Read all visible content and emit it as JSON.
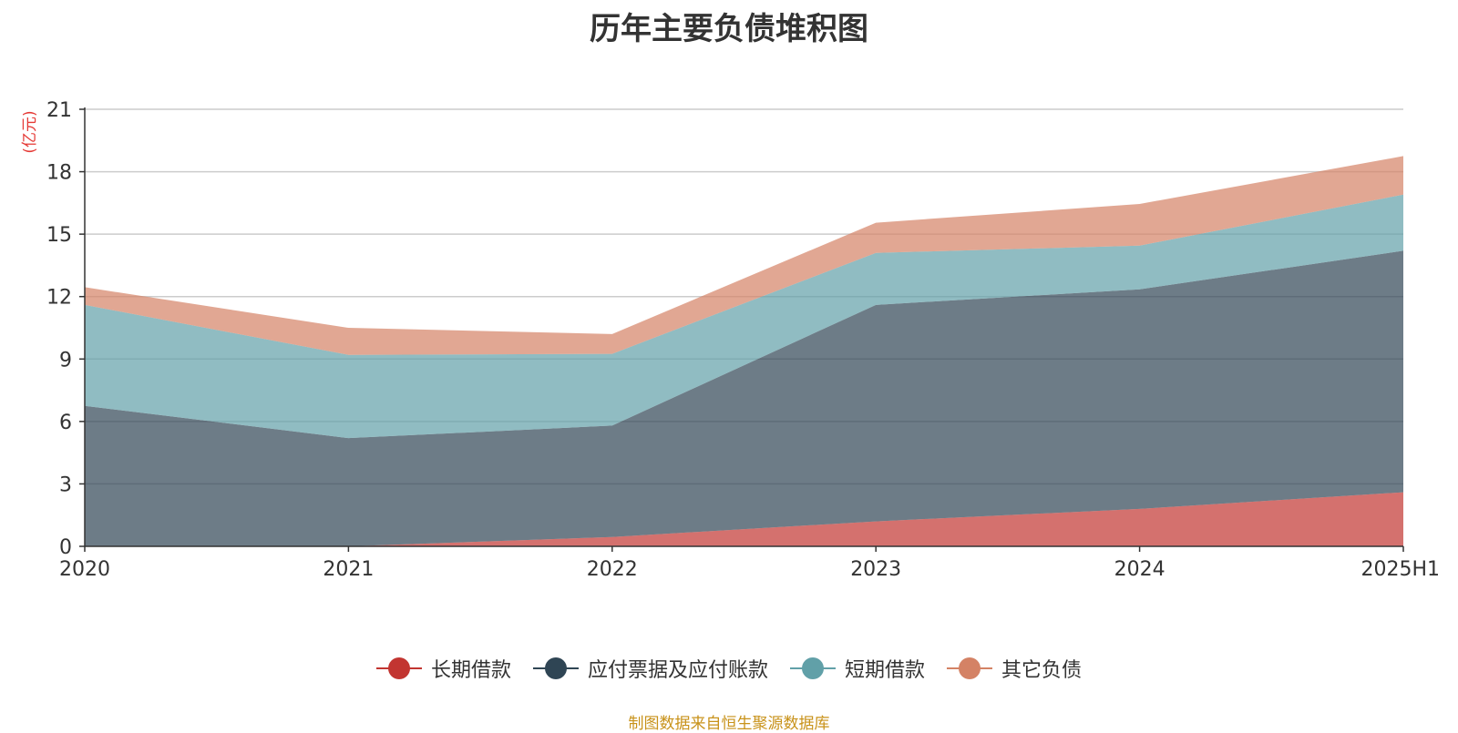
{
  "chart_data": {
    "type": "area",
    "stacked": true,
    "title": "历年主要负债堆积图",
    "ylabel": "(亿元)",
    "xlabel": "",
    "categories": [
      "2020",
      "2021",
      "2022",
      "2023",
      "2024",
      "2025H1"
    ],
    "ylim": [
      0,
      21
    ],
    "yticks": [
      0,
      3,
      6,
      9,
      12,
      15,
      18,
      21
    ],
    "grid": true,
    "legend_position": "bottom",
    "series": [
      {
        "name": "长期借款",
        "color": "#c23531",
        "values": [
          0.0,
          0.0,
          0.45,
          1.2,
          1.8,
          2.6
        ]
      },
      {
        "name": "应付票据及应付账款",
        "color": "#2f4554",
        "values": [
          6.75,
          5.2,
          5.35,
          10.4,
          10.55,
          11.6
        ]
      },
      {
        "name": "短期借款",
        "color": "#61a0a8",
        "values": [
          4.85,
          4.0,
          3.45,
          2.5,
          2.1,
          2.7
        ]
      },
      {
        "name": "其它负债",
        "color": "#d48265",
        "values": [
          0.85,
          1.3,
          0.95,
          1.45,
          2.0,
          1.85
        ]
      }
    ]
  },
  "source_note": "制图数据来自恒生聚源数据库"
}
